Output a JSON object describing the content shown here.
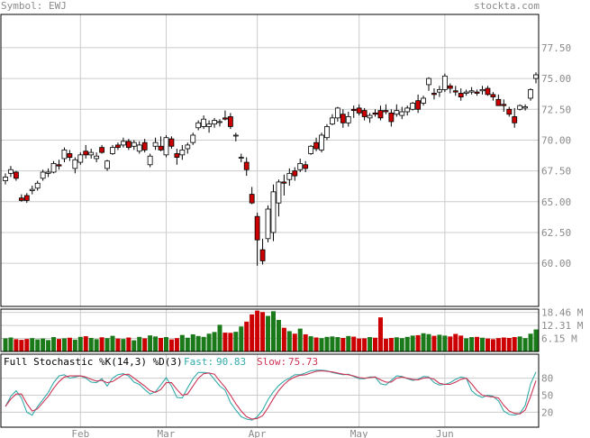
{
  "header": {
    "symbol_label": "Symbol:",
    "symbol": "EWJ",
    "site": "stockta.com"
  },
  "colors": {
    "up_fill": "#ffffff",
    "down_fill": "#cc0000",
    "vol_up": "#1a7a1a",
    "vol_down": "#cc0000",
    "grid": "#cccccc",
    "k_line": "#33aaaa",
    "d_line": "#cc3355",
    "text": "#888888"
  },
  "stochastic": {
    "title": "Full Stochastic %K(14,3) %D(3)",
    "fast_label": "Fast:",
    "fast_value": "90.83",
    "slow_label": "Slow:",
    "slow_value": "75.73"
  },
  "chart_data": [
    {
      "type": "candlestick",
      "ylim": [
        56.5,
        80.2
      ],
      "y_ticks": [
        "77.50",
        "75.00",
        "72.50",
        "70.00",
        "67.50",
        "65.00",
        "62.50",
        "60.00"
      ],
      "x_labels": [
        "Feb",
        "Mar",
        "Apr",
        "May",
        "Jun"
      ],
      "grid": true,
      "ohlc": [
        [
          66.7,
          67.3,
          66.4,
          67.0
        ],
        [
          67.3,
          67.9,
          67.0,
          67.6
        ],
        [
          67.4,
          67.5,
          66.7,
          66.9
        ],
        [
          65.3,
          65.6,
          65.0,
          65.1
        ],
        [
          65.5,
          65.7,
          64.9,
          65.1
        ],
        [
          65.9,
          66.3,
          65.6,
          66.0
        ],
        [
          66.1,
          66.7,
          65.9,
          66.5
        ],
        [
          66.9,
          67.6,
          66.7,
          67.4
        ],
        [
          67.3,
          67.7,
          67.0,
          67.4
        ],
        [
          67.4,
          68.3,
          67.3,
          68.1
        ],
        [
          68.0,
          68.4,
          67.6,
          67.9
        ],
        [
          68.5,
          69.4,
          68.2,
          69.2
        ],
        [
          68.9,
          69.2,
          68.3,
          68.6
        ],
        [
          67.7,
          68.6,
          67.3,
          68.4
        ],
        [
          68.2,
          69.0,
          68.0,
          68.8
        ],
        [
          69.1,
          69.6,
          68.5,
          68.8
        ],
        [
          68.8,
          69.3,
          68.5,
          69.0
        ],
        [
          68.5,
          69.0,
          68.2,
          68.7
        ],
        [
          69.4,
          69.6,
          68.9,
          69.0
        ],
        [
          67.7,
          68.4,
          67.5,
          68.3
        ],
        [
          68.9,
          69.6,
          68.8,
          69.4
        ],
        [
          69.6,
          69.8,
          69.2,
          69.4
        ],
        [
          69.6,
          70.2,
          69.4,
          69.9
        ],
        [
          69.9,
          70.1,
          69.2,
          69.4
        ],
        [
          69.5,
          70.0,
          69.2,
          69.8
        ],
        [
          69.1,
          69.9,
          68.9,
          69.6
        ],
        [
          69.8,
          70.1,
          69.0,
          69.2
        ],
        [
          68.0,
          68.9,
          67.8,
          68.7
        ],
        [
          69.5,
          70.2,
          69.2,
          69.8
        ],
        [
          69.5,
          70.3,
          69.1,
          69.2
        ],
        [
          68.8,
          70.4,
          68.6,
          70.2
        ],
        [
          70.1,
          70.3,
          69.3,
          69.5
        ],
        [
          68.9,
          69.3,
          68.0,
          68.6
        ],
        [
          68.8,
          69.6,
          68.4,
          69.2
        ],
        [
          69.3,
          69.8,
          68.9,
          69.6
        ],
        [
          69.8,
          70.6,
          69.6,
          70.4
        ],
        [
          71.0,
          71.6,
          70.8,
          71.4
        ],
        [
          71.1,
          72.0,
          70.9,
          71.7
        ],
        [
          71.1,
          71.6,
          70.6,
          71.3
        ],
        [
          71.3,
          71.8,
          71.0,
          71.6
        ],
        [
          71.5,
          71.7,
          71.1,
          71.5
        ],
        [
          71.8,
          72.4,
          71.6,
          71.7
        ],
        [
          71.9,
          72.2,
          70.9,
          71.1
        ],
        [
          70.4,
          70.6,
          69.9,
          70.4
        ],
        [
          68.6,
          68.9,
          68.2,
          68.6
        ],
        [
          68.2,
          68.6,
          67.1,
          67.6
        ],
        [
          65.6,
          66.2,
          64.8,
          64.9
        ],
        [
          63.8,
          64.1,
          59.8,
          61.9
        ],
        [
          61.1,
          62.0,
          59.9,
          60.2
        ],
        [
          62.0,
          64.7,
          61.7,
          64.4
        ],
        [
          62.5,
          66.4,
          61.8,
          65.8
        ],
        [
          64.9,
          66.8,
          63.8,
          66.6
        ],
        [
          66.6,
          67.2,
          65.5,
          66.5
        ],
        [
          66.8,
          67.7,
          66.3,
          67.3
        ],
        [
          67.5,
          67.8,
          66.7,
          67.1
        ],
        [
          67.6,
          68.5,
          67.4,
          68.1
        ],
        [
          68.0,
          68.3,
          67.4,
          67.7
        ],
        [
          68.9,
          69.6,
          68.8,
          69.5
        ],
        [
          69.8,
          70.2,
          69.1,
          69.3
        ],
        [
          69.2,
          70.6,
          69.0,
          70.4
        ],
        [
          70.2,
          71.3,
          70.0,
          71.1
        ],
        [
          71.3,
          72.1,
          71.2,
          71.8
        ],
        [
          71.8,
          72.7,
          71.5,
          72.6
        ],
        [
          72.1,
          72.5,
          71.0,
          71.4
        ],
        [
          71.4,
          72.3,
          71.1,
          71.9
        ],
        [
          72.5,
          72.8,
          71.8,
          72.4
        ],
        [
          72.6,
          72.9,
          72.0,
          72.2
        ],
        [
          72.4,
          72.6,
          71.6,
          71.9
        ],
        [
          71.8,
          72.2,
          71.4,
          72.0
        ],
        [
          72.2,
          72.5,
          71.9,
          72.1
        ],
        [
          72.4,
          72.8,
          71.6,
          71.8
        ],
        [
          72.4,
          72.9,
          72.1,
          72.3
        ],
        [
          72.2,
          72.5,
          71.1,
          71.5
        ],
        [
          72.1,
          72.9,
          71.9,
          72.4
        ],
        [
          72.0,
          72.7,
          71.7,
          72.3
        ],
        [
          72.3,
          72.8,
          72.0,
          72.6
        ],
        [
          72.5,
          73.1,
          72.4,
          73.0
        ],
        [
          73.2,
          73.7,
          72.2,
          72.5
        ],
        [
          73.0,
          73.6,
          72.8,
          73.4
        ],
        [
          74.5,
          75.1,
          74.0,
          75.0
        ],
        [
          73.8,
          74.2,
          73.3,
          73.7
        ],
        [
          73.9,
          74.4,
          73.5,
          74.1
        ],
        [
          74.1,
          75.4,
          73.9,
          75.2
        ],
        [
          74.4,
          74.6,
          73.8,
          74.2
        ],
        [
          74.0,
          74.4,
          73.6,
          73.9
        ],
        [
          73.8,
          74.2,
          73.2,
          73.5
        ],
        [
          73.8,
          74.1,
          73.6,
          73.9
        ],
        [
          73.9,
          74.3,
          73.7,
          74.0
        ],
        [
          73.9,
          74.1,
          73.6,
          73.8
        ],
        [
          74.0,
          74.4,
          73.7,
          74.1
        ],
        [
          74.2,
          74.4,
          73.6,
          73.7
        ],
        [
          73.7,
          73.9,
          73.2,
          73.5
        ],
        [
          73.3,
          73.7,
          72.8,
          72.8
        ],
        [
          72.9,
          73.3,
          72.3,
          72.8
        ],
        [
          72.5,
          72.7,
          71.9,
          72.1
        ],
        [
          71.9,
          72.6,
          71.0,
          71.4
        ],
        [
          72.5,
          72.9,
          72.4,
          72.8
        ],
        [
          72.6,
          72.9,
          72.4,
          72.7
        ],
        [
          73.4,
          74.2,
          73.2,
          74.1
        ],
        [
          75.0,
          75.5,
          74.6,
          75.3
        ]
      ],
      "x_label_index": [
        14,
        30,
        47,
        66,
        82
      ]
    },
    {
      "type": "bar",
      "name": "Volume",
      "y_ticks": [
        "18.46 M",
        "12.31 M",
        "6.15 M"
      ],
      "ylim": [
        0,
        20.0
      ],
      "values": [
        6.2,
        6.6,
        5.8,
        5.5,
        5.9,
        6.3,
        5.7,
        6.1,
        5.4,
        6.8,
        5.9,
        6.2,
        6.5,
        5.6,
        6.9,
        7.2,
        6.4,
        5.8,
        6.7,
        6.3,
        7.4,
        6.1,
        5.9,
        6.6,
        5.3,
        6.9,
        6.2,
        7.6,
        7.1,
        6.4,
        6.8,
        5.7,
        6.3,
        7.8,
        6.5,
        8.1,
        7.3,
        6.9,
        8.4,
        9.2,
        12.6,
        8.9,
        8.8,
        9.3,
        11.8,
        14.1,
        17.5,
        19.3,
        18.6,
        16.8,
        19.0,
        14.9,
        11.2,
        9.6,
        8.4,
        10.8,
        8.1,
        7.2,
        6.6,
        6.3,
        6.9,
        7.1,
        6.8,
        6.4,
        7.3,
        7.0,
        6.1,
        6.2,
        6.8,
        6.5,
        16.1,
        6.0,
        6.4,
        6.7,
        6.3,
        6.9,
        7.5,
        7.7,
        8.6,
        8.2,
        7.4,
        7.9,
        7.5,
        7.1,
        8.3,
        7.5,
        6.2,
        6.8,
        6.9,
        6.5,
        6.1,
        5.8,
        6.3,
        6.6,
        6.4,
        6.8,
        7.1,
        6.3,
        8.4,
        10.4
      ]
    },
    {
      "type": "line",
      "name": "Full Stochastic %K(14,3) %D(3)",
      "y_ticks": [
        "80",
        "50",
        "20"
      ],
      "ylim": [
        0,
        100
      ],
      "series": [
        {
          "name": "Fast",
          "values": [
            30,
            48,
            58,
            45,
            20,
            15,
            30,
            42,
            55,
            72,
            84,
            86,
            80,
            82,
            84,
            80,
            73,
            72,
            79,
            66,
            80,
            86,
            88,
            84,
            73,
            69,
            60,
            52,
            56,
            68,
            81,
            66,
            46,
            45,
            63,
            79,
            90,
            90,
            89,
            78,
            66,
            59,
            37,
            24,
            12,
            8,
            6,
            12,
            24,
            42,
            56,
            67,
            75,
            80,
            86,
            86,
            89,
            93,
            94,
            94,
            93,
            90,
            88,
            86,
            87,
            83,
            79,
            79,
            82,
            82,
            70,
            68,
            76,
            84,
            83,
            79,
            76,
            78,
            83,
            82,
            72,
            68,
            69,
            72,
            78,
            82,
            80,
            58,
            50,
            46,
            50,
            48,
            40,
            22,
            16,
            15,
            18,
            32,
            70,
            90.83
          ]
        },
        {
          "name": "Slow",
          "values": [
            30,
            43,
            52,
            52,
            35,
            22,
            26,
            37,
            48,
            62,
            74,
            82,
            84,
            84,
            84,
            82,
            78,
            75,
            76,
            72,
            74,
            80,
            86,
            87,
            80,
            73,
            66,
            58,
            55,
            60,
            72,
            72,
            60,
            50,
            52,
            66,
            80,
            88,
            89,
            87,
            75,
            64,
            50,
            35,
            22,
            12,
            8,
            9,
            14,
            28,
            44,
            58,
            69,
            77,
            82,
            85,
            86,
            89,
            92,
            93,
            92,
            91,
            89,
            87,
            86,
            84,
            81,
            80,
            81,
            82,
            77,
            73,
            73,
            80,
            82,
            80,
            78,
            77,
            80,
            81,
            78,
            71,
            69,
            69,
            73,
            78,
            80,
            70,
            58,
            50,
            48,
            47,
            45,
            32,
            22,
            18,
            17,
            24,
            48,
            75.73
          ]
        }
      ]
    }
  ]
}
